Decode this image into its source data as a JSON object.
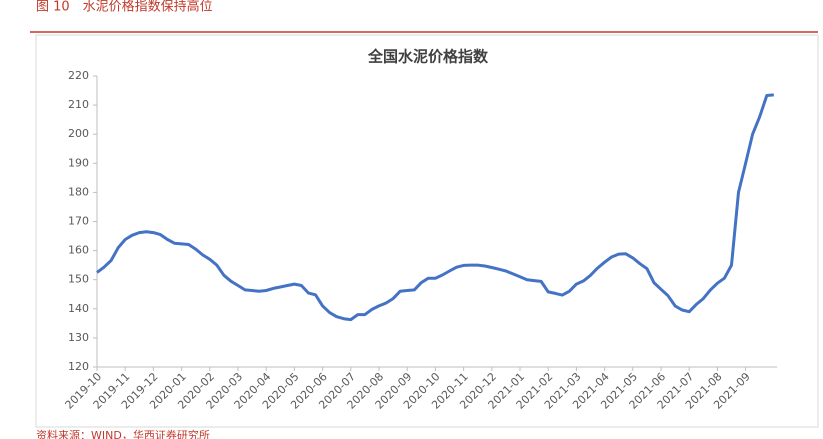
{
  "caption": "图 10　水泥价格指数保持高位",
  "source": "资料来源：WIND，华西证券研究所",
  "chart_data": {
    "type": "line",
    "title": "全国水泥价格指数",
    "color": "#4472c4",
    "categories": [
      "2019-10",
      null,
      null,
      null,
      "2019-11",
      null,
      null,
      null,
      "2019-12",
      null,
      null,
      null,
      "2020-01",
      null,
      null,
      null,
      "2020-02",
      null,
      null,
      null,
      "2020-03",
      null,
      null,
      null,
      "2020-04",
      null,
      null,
      null,
      "2020-05",
      null,
      null,
      null,
      "2020-06",
      null,
      null,
      null,
      "2020-07",
      null,
      null,
      null,
      "2020-08",
      null,
      null,
      null,
      "2020-09",
      null,
      null,
      null,
      "2020-10",
      null,
      null,
      null,
      "2020-11",
      null,
      null,
      null,
      "2020-12",
      null,
      null,
      null,
      "2021-01",
      null,
      null,
      null,
      "2021-02",
      null,
      null,
      null,
      "2021-03",
      null,
      null,
      null,
      "2021-04",
      null,
      null,
      null,
      "2021-05",
      null,
      null,
      null,
      "2021-06",
      null,
      null,
      null,
      "2021-07",
      null,
      null,
      null,
      "2021-08",
      null,
      null,
      null,
      "2021-09",
      null,
      null,
      null,
      null
    ],
    "values": [
      152.5,
      154.3,
      156.6,
      161,
      163.8,
      165.3,
      166.2,
      166.5,
      166.2,
      165.5,
      163.8,
      162.5,
      162.3,
      162.1,
      160.5,
      158.5,
      157,
      155,
      151.5,
      149.5,
      148,
      146.5,
      146.3,
      146,
      146.3,
      147,
      147.5,
      148,
      148.5,
      148,
      145.4,
      144.8,
      141,
      138.7,
      137.3,
      136.6,
      136.3,
      138,
      138,
      139.8,
      141,
      142,
      143.5,
      146,
      146.3,
      146.5,
      149,
      150.5,
      150.5,
      151.6,
      153,
      154.3,
      154.9,
      155,
      155,
      154.7,
      154.2,
      153.6,
      153,
      152,
      151,
      150,
      149.7,
      149.4,
      145.8,
      145.3,
      144.7,
      146,
      148.5,
      149.6,
      151.5,
      154,
      156,
      157.8,
      158.8,
      158.9,
      157.5,
      155.5,
      153.8,
      149,
      146.7,
      144.5,
      141,
      139.6,
      139,
      141.5,
      143.5,
      146.5,
      148.8,
      150.5,
      155,
      180,
      190,
      200,
      206,
      213.3,
      213.5
    ],
    "ylim": [
      120,
      220
    ],
    "yticks": [
      120,
      130,
      140,
      150,
      160,
      170,
      180,
      190,
      200,
      210,
      220
    ],
    "grid": false
  }
}
